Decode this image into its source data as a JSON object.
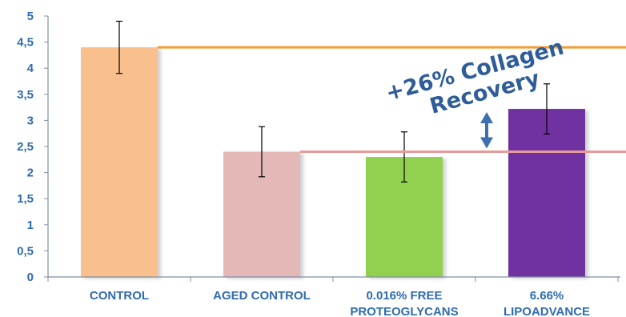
{
  "chart_data": {
    "type": "bar",
    "categories": [
      [
        "CONTROL"
      ],
      [
        "AGED CONTROL"
      ],
      [
        "0.016% FREE",
        "PROTEOGLYCANS"
      ],
      [
        "6.66%",
        "LIPOADVANCE"
      ]
    ],
    "values": [
      4.4,
      2.4,
      2.3,
      3.22
    ],
    "errors": [
      0.5,
      0.48,
      0.48,
      0.48
    ],
    "bar_colors": [
      "#f9c08e",
      "#e5b8b8",
      "#92d050",
      "#7030a0"
    ],
    "ylim": [
      0,
      5
    ],
    "yticks": [
      "0",
      "0,5",
      "1",
      "1,5",
      "2",
      "2,5",
      "3",
      "3,5",
      "4",
      "4,5",
      "5"
    ],
    "reference_lines": [
      {
        "value": 4.4,
        "color": "#f39c32"
      },
      {
        "value": 2.4,
        "color": "#e79a9a"
      }
    ],
    "annotation": {
      "lines": [
        "+26% Collagen",
        "Recovery"
      ],
      "color": "#2e5d99"
    },
    "arrow_color": "#3e6fae",
    "axis_label_color": "#2e6bb0",
    "title": "",
    "xlabel": "",
    "ylabel": ""
  }
}
